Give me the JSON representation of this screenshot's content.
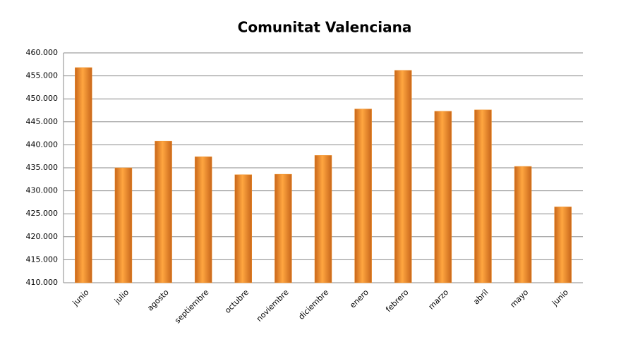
{
  "chart_data": {
    "type": "bar",
    "title": "Comunitat Valenciana",
    "categories": [
      "junio",
      "julio",
      "agosto",
      "septiembre",
      "octubre",
      "noviembre",
      "diciembre",
      "enero",
      "febrero",
      "marzo",
      "abril",
      "mayo",
      "junio"
    ],
    "values": [
      456800,
      435000,
      440800,
      437400,
      433500,
      433600,
      437700,
      447800,
      456200,
      447300,
      447600,
      435300,
      426500
    ],
    "color": "#f0922b",
    "ylim": [
      410000,
      460000
    ],
    "yticks": [
      {
        "value": 410000,
        "label": "410.000"
      },
      {
        "value": 415000,
        "label": "415.000"
      },
      {
        "value": 420000,
        "label": "420.000"
      },
      {
        "value": 425000,
        "label": "425.000"
      },
      {
        "value": 430000,
        "label": "430.000"
      },
      {
        "value": 435000,
        "label": "435.000"
      },
      {
        "value": 440000,
        "label": "440.000"
      },
      {
        "value": 445000,
        "label": "445.000"
      },
      {
        "value": 450000,
        "label": "450.000"
      },
      {
        "value": 455000,
        "label": "455.000"
      },
      {
        "value": 460000,
        "label": "460.000"
      }
    ],
    "grid": true
  }
}
